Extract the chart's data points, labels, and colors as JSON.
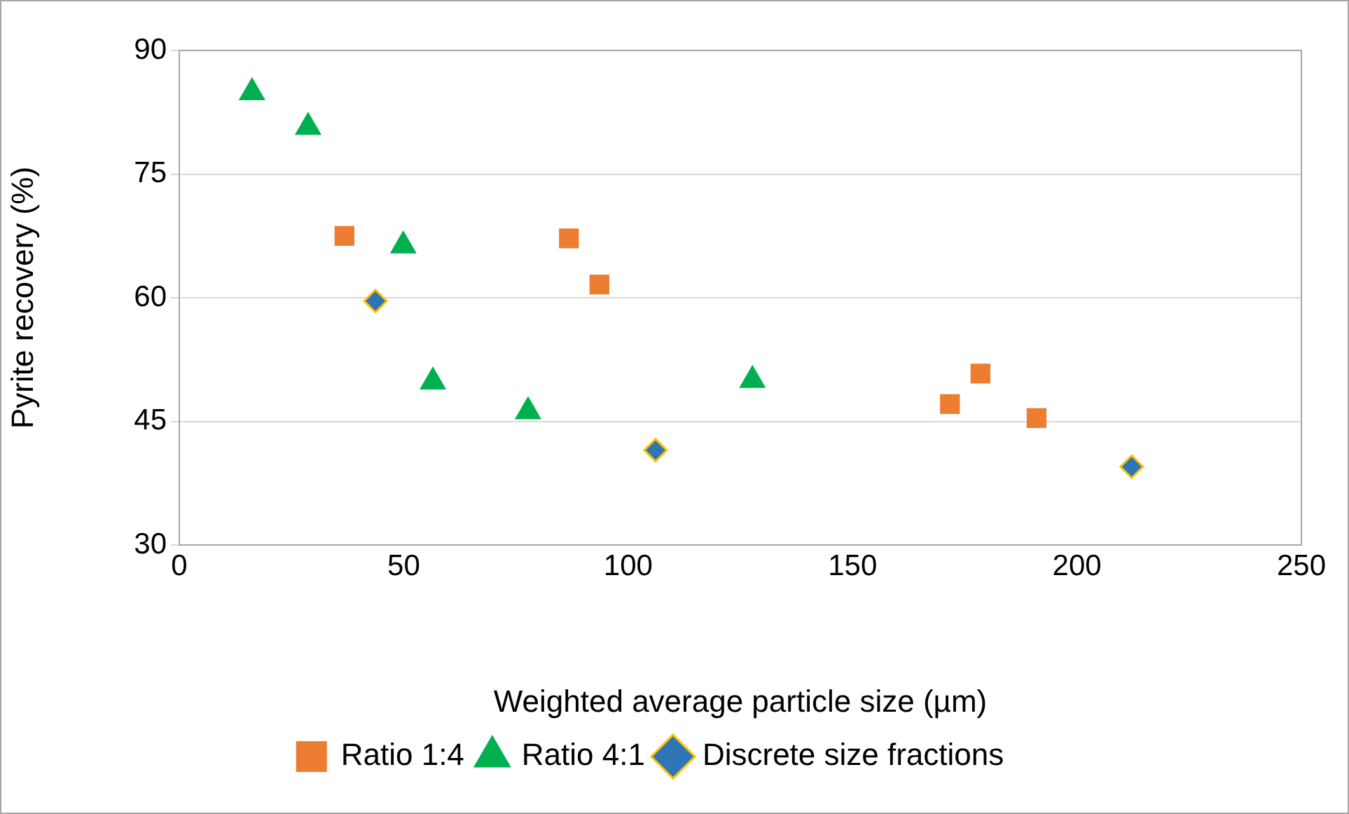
{
  "chart_data": {
    "type": "scatter",
    "xlabel": "Weighted average particle size (µm)",
    "ylabel": "Pyrite recovery (%)",
    "xlim": [
      0,
      250
    ],
    "xticks": [
      0,
      50,
      100,
      150,
      200,
      250
    ],
    "ylim": [
      30,
      90
    ],
    "yticks": [
      30,
      45,
      60,
      75,
      90
    ],
    "grid": "y",
    "legend": "bottom",
    "series": [
      {
        "name": "Ratio 1:4",
        "color": "#ed7d31",
        "marker": "square",
        "x": [
          36.8,
          86.8,
          93.6,
          171.7,
          178.5,
          191
        ],
        "values": [
          67.5,
          67.2,
          61.6,
          47.1,
          50.8,
          45.4
        ]
      },
      {
        "name": "Ratio 4:1",
        "color": "#00b050",
        "marker": "triangle",
        "x": [
          16.2,
          28.7,
          49.9,
          56.5,
          77.7,
          127.7
        ],
        "values": [
          84.9,
          80.7,
          66.3,
          49.8,
          46.2,
          50.0
        ]
      },
      {
        "name": "Discrete size fractions",
        "color": "#2e75b6",
        "marker": "diamond",
        "x": [
          43.7,
          106.1,
          212.2
        ],
        "values": [
          59.6,
          41.5,
          39.5
        ]
      }
    ]
  }
}
